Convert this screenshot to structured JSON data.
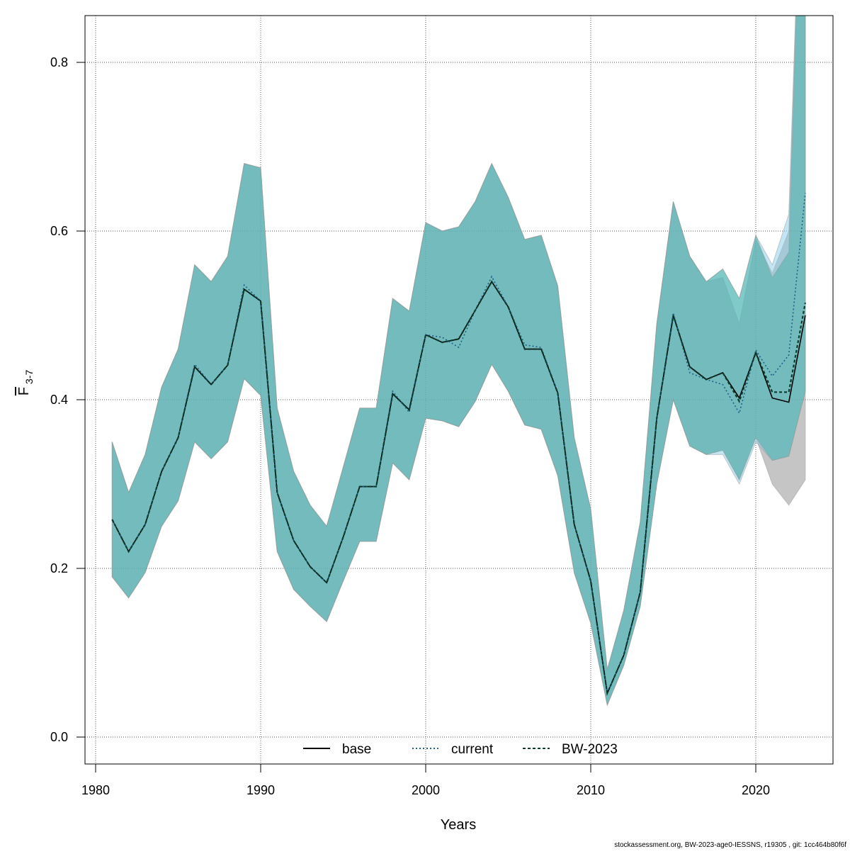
{
  "chart_data": {
    "type": "line",
    "xlabel": "Years",
    "ylabel_main": "F",
    "ylabel_sub": "3-7",
    "xlim": [
      1979.35,
      2024.65
    ],
    "ylim": [
      -0.032,
      0.855
    ],
    "xticks": [
      1980,
      1990,
      2000,
      2010,
      2020
    ],
    "yticks": [
      0.0,
      0.2,
      0.4,
      0.6,
      0.8
    ],
    "ytick_labels": [
      "0.0",
      "0.2",
      "0.4",
      "0.6",
      "0.8"
    ],
    "grid": true,
    "legend_position": "bottom",
    "years": [
      1981,
      1982,
      1983,
      1984,
      1985,
      1986,
      1987,
      1988,
      1989,
      1990,
      1991,
      1992,
      1993,
      1994,
      1995,
      1996,
      1997,
      1998,
      1999,
      2000,
      2001,
      2002,
      2003,
      2004,
      2005,
      2006,
      2007,
      2008,
      2009,
      2010,
      2011,
      2012,
      2013,
      2014,
      2015,
      2016,
      2017,
      2018,
      2019,
      2020,
      2021,
      2022,
      2023
    ],
    "series": [
      {
        "name": "base",
        "style": "solid",
        "color": "#000000",
        "band_color": "#8c8c8c",
        "values": [
          0.258,
          0.22,
          0.252,
          0.315,
          0.355,
          0.439,
          0.418,
          0.441,
          0.531,
          0.517,
          0.29,
          0.233,
          0.202,
          0.183,
          0.237,
          0.297,
          0.297,
          0.407,
          0.388,
          0.477,
          0.468,
          0.472,
          0.506,
          0.54,
          0.51,
          0.46,
          0.46,
          0.408,
          0.252,
          0.185,
          0.052,
          0.097,
          0.172,
          0.378,
          0.5,
          0.439,
          0.424,
          0.432,
          0.402,
          0.456,
          0.402,
          0.397,
          0.5
        ],
        "lower": [
          0.19,
          0.165,
          0.195,
          0.25,
          0.28,
          0.35,
          0.33,
          0.35,
          0.425,
          0.405,
          0.22,
          0.175,
          0.155,
          0.137,
          0.185,
          0.232,
          0.232,
          0.325,
          0.305,
          0.378,
          0.375,
          0.368,
          0.398,
          0.442,
          0.41,
          0.37,
          0.365,
          0.31,
          0.195,
          0.135,
          0.038,
          0.085,
          0.155,
          0.3,
          0.4,
          0.345,
          0.335,
          0.34,
          0.305,
          0.355,
          0.3,
          0.275,
          0.305
        ],
        "upper": [
          0.35,
          0.29,
          0.335,
          0.415,
          0.46,
          0.56,
          0.54,
          0.57,
          0.68,
          0.675,
          0.39,
          0.315,
          0.275,
          0.25,
          0.32,
          0.39,
          0.39,
          0.52,
          0.505,
          0.61,
          0.6,
          0.605,
          0.635,
          0.68,
          0.64,
          0.59,
          0.595,
          0.535,
          0.355,
          0.27,
          0.08,
          0.15,
          0.255,
          0.49,
          0.635,
          0.57,
          0.54,
          0.545,
          0.49,
          0.59,
          0.55,
          0.6,
          1.2
        ]
      },
      {
        "name": "current",
        "style": "dotted",
        "color": "#1f5f8b",
        "band_color": "#87ceeb",
        "values": [
          0.258,
          0.22,
          0.252,
          0.315,
          0.355,
          0.442,
          0.418,
          0.441,
          0.536,
          0.517,
          0.29,
          0.233,
          0.202,
          0.183,
          0.237,
          0.297,
          0.297,
          0.41,
          0.385,
          0.477,
          0.474,
          0.462,
          0.506,
          0.546,
          0.51,
          0.465,
          0.462,
          0.408,
          0.252,
          0.185,
          0.052,
          0.097,
          0.172,
          0.378,
          0.503,
          0.432,
          0.424,
          0.418,
          0.384,
          0.459,
          0.428,
          0.453,
          0.645
        ],
        "lower": [
          0.19,
          0.165,
          0.195,
          0.25,
          0.28,
          0.35,
          0.33,
          0.35,
          0.425,
          0.405,
          0.22,
          0.175,
          0.155,
          0.137,
          0.185,
          0.232,
          0.232,
          0.325,
          0.305,
          0.378,
          0.375,
          0.368,
          0.398,
          0.442,
          0.41,
          0.37,
          0.365,
          0.31,
          0.195,
          0.135,
          0.038,
          0.085,
          0.155,
          0.3,
          0.4,
          0.345,
          0.335,
          0.335,
          0.3,
          0.35,
          0.328,
          0.333,
          0.41
        ],
        "upper": [
          0.35,
          0.29,
          0.335,
          0.415,
          0.46,
          0.56,
          0.54,
          0.57,
          0.68,
          0.675,
          0.39,
          0.315,
          0.275,
          0.25,
          0.32,
          0.39,
          0.39,
          0.52,
          0.505,
          0.61,
          0.6,
          0.605,
          0.635,
          0.68,
          0.64,
          0.59,
          0.595,
          0.535,
          0.355,
          0.27,
          0.08,
          0.15,
          0.255,
          0.49,
          0.635,
          0.57,
          0.54,
          0.555,
          0.52,
          0.595,
          0.56,
          0.62,
          1.2
        ]
      },
      {
        "name": "BW-2023",
        "style": "dashed",
        "color": "#0b3d2e",
        "band_color": "#3fae9f",
        "values": [
          0.258,
          0.22,
          0.252,
          0.315,
          0.355,
          0.439,
          0.418,
          0.441,
          0.531,
          0.517,
          0.29,
          0.233,
          0.202,
          0.183,
          0.237,
          0.297,
          0.297,
          0.407,
          0.388,
          0.477,
          0.468,
          0.472,
          0.506,
          0.54,
          0.51,
          0.46,
          0.46,
          0.408,
          0.252,
          0.185,
          0.052,
          0.097,
          0.172,
          0.378,
          0.5,
          0.439,
          0.424,
          0.432,
          0.398,
          0.456,
          0.409,
          0.409,
          0.515
        ],
        "lower": [
          0.19,
          0.165,
          0.195,
          0.25,
          0.28,
          0.35,
          0.33,
          0.35,
          0.425,
          0.405,
          0.22,
          0.175,
          0.155,
          0.137,
          0.185,
          0.232,
          0.232,
          0.325,
          0.305,
          0.378,
          0.375,
          0.368,
          0.398,
          0.442,
          0.41,
          0.37,
          0.365,
          0.31,
          0.195,
          0.135,
          0.038,
          0.085,
          0.155,
          0.3,
          0.4,
          0.345,
          0.335,
          0.34,
          0.305,
          0.355,
          0.328,
          0.333,
          0.41
        ],
        "upper": [
          0.35,
          0.29,
          0.335,
          0.415,
          0.46,
          0.56,
          0.54,
          0.57,
          0.68,
          0.675,
          0.39,
          0.315,
          0.275,
          0.25,
          0.32,
          0.39,
          0.39,
          0.52,
          0.505,
          0.61,
          0.6,
          0.605,
          0.635,
          0.68,
          0.64,
          0.59,
          0.595,
          0.535,
          0.355,
          0.27,
          0.08,
          0.15,
          0.255,
          0.49,
          0.635,
          0.57,
          0.54,
          0.555,
          0.52,
          0.595,
          0.545,
          0.575,
          1.2
        ]
      }
    ],
    "footer": "stockassessment.org, BW-2023-age0-IESSNS, r19305 , git: 1cc464b80f6f"
  }
}
